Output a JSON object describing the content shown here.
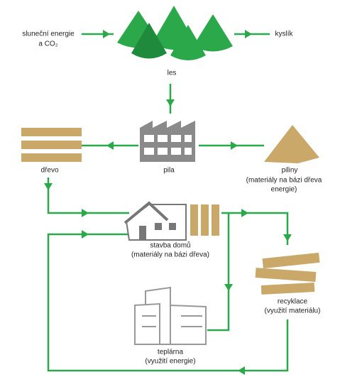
{
  "nodes": [
    {
      "label": [
        "sluneční energie",
        "a CO₂"
      ]
    },
    {
      "label": [
        "kyslík"
      ]
    },
    {
      "label": [
        "les"
      ]
    },
    {
      "label": [
        "dřevo"
      ]
    },
    {
      "label": [
        "pila"
      ]
    },
    {
      "label": [
        "piliny",
        "(materiály na bázi dřeva",
        "energie)"
      ]
    },
    {
      "label": [
        "stavba domů",
        "(materiály na bázi dřeva)"
      ]
    },
    {
      "label": [
        "recyklace",
        "(využití materiálu)"
      ]
    },
    {
      "label": [
        "teplárna",
        "(využití energie)"
      ]
    }
  ]
}
